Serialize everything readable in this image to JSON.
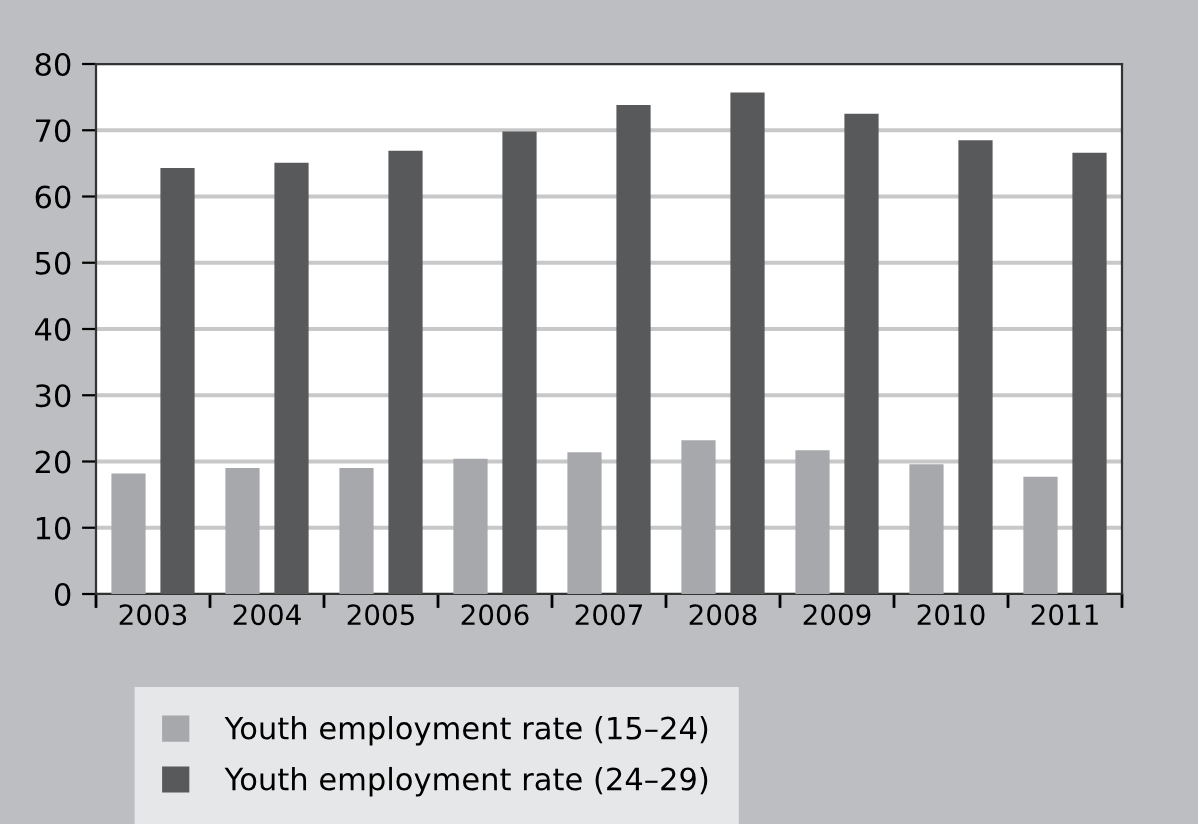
{
  "chart_data": {
    "type": "bar",
    "categories": [
      "2003",
      "2004",
      "2005",
      "2006",
      "2007",
      "2008",
      "2009",
      "2010",
      "2011"
    ],
    "series": [
      {
        "name": "Youth employment rate (15–24)",
        "color": "#a7a8ab",
        "values": [
          18.2,
          19.0,
          19.0,
          20.4,
          21.4,
          23.2,
          21.7,
          19.6,
          17.7
        ]
      },
      {
        "name": "Youth employment rate (24–29)",
        "color": "#58595b",
        "values": [
          64.3,
          65.1,
          66.9,
          69.8,
          73.8,
          75.7,
          72.5,
          68.5,
          66.6
        ]
      }
    ],
    "ylim": [
      0,
      80
    ],
    "yticks": [
      0,
      10,
      20,
      30,
      40,
      50,
      60,
      70,
      80
    ],
    "grid": "y",
    "legend": "bottom left"
  }
}
